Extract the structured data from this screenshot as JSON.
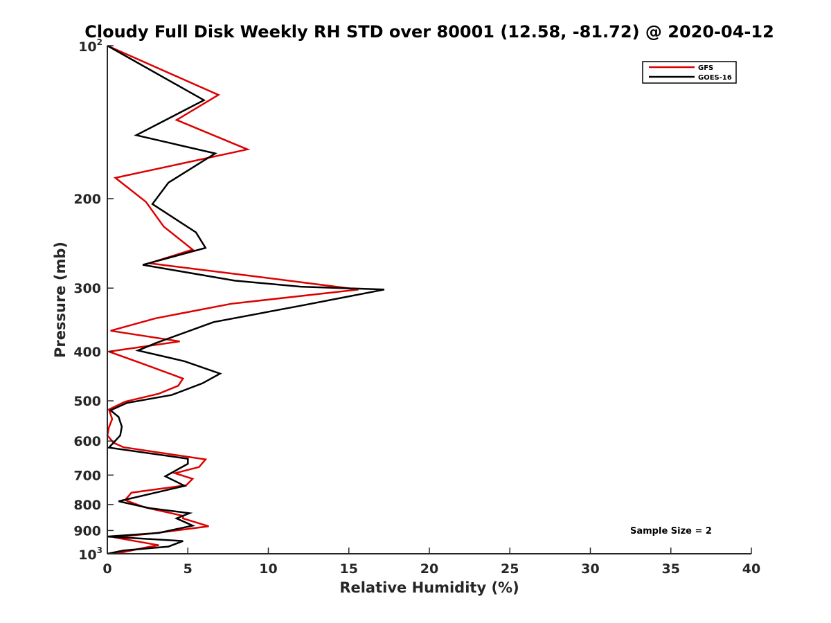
{
  "chart_data": {
    "type": "line",
    "title": "Cloudy Full Disk Weekly RH STD over 80001 (12.58, -81.72) @ 2020-04-12",
    "xlabel": "Relative Humidity (%)",
    "ylabel": "Pressure (mb)",
    "xlim": [
      0,
      40
    ],
    "ylim": [
      100,
      1000
    ],
    "y_scale": "log",
    "y_reversed": true,
    "x_ticks": [
      "0",
      "5",
      "10",
      "15",
      "20",
      "25",
      "30",
      "35",
      "40"
    ],
    "y_ticks": [
      {
        "value": 100,
        "base": "10",
        "exp": "2"
      },
      {
        "value": 200,
        "label": "200"
      },
      {
        "value": 300,
        "label": "300"
      },
      {
        "value": 400,
        "label": "400"
      },
      {
        "value": 500,
        "label": "500"
      },
      {
        "value": 600,
        "label": "600"
      },
      {
        "value": 700,
        "label": "700"
      },
      {
        "value": 800,
        "label": "800"
      },
      {
        "value": 900,
        "label": "900"
      },
      {
        "value": 1000,
        "base": "10",
        "exp": "3"
      }
    ],
    "grid": false,
    "legend_position": "top-right",
    "annotation": "Sample Size = 2",
    "series": [
      {
        "name": "GFS",
        "color": "#dd0000",
        "points": [
          [
            0.0,
            100
          ],
          [
            6.9,
            125
          ],
          [
            4.3,
            140
          ],
          [
            8.7,
            160
          ],
          [
            0.5,
            182
          ],
          [
            2.4,
            203
          ],
          [
            3.5,
            227
          ],
          [
            5.3,
            252
          ],
          [
            2.6,
            268
          ],
          [
            8.6,
            283
          ],
          [
            15.6,
            302
          ],
          [
            7.7,
            322
          ],
          [
            3.0,
            344
          ],
          [
            0.2,
            364
          ],
          [
            4.5,
            382
          ],
          [
            0.1,
            400
          ],
          [
            2.4,
            425
          ],
          [
            4.7,
            452
          ],
          [
            4.4,
            467
          ],
          [
            3.2,
            484
          ],
          [
            1.1,
            502
          ],
          [
            0.1,
            520
          ],
          [
            0.3,
            543
          ],
          [
            0.1,
            564
          ],
          [
            0.0,
            585
          ],
          [
            0.4,
            605
          ],
          [
            1.0,
            617
          ],
          [
            6.1,
            652
          ],
          [
            5.7,
            675
          ],
          [
            4.2,
            694
          ],
          [
            5.3,
            712
          ],
          [
            4.9,
            733
          ],
          [
            1.5,
            758
          ],
          [
            1.1,
            784
          ],
          [
            2.3,
            810
          ],
          [
            4.7,
            842
          ],
          [
            4.7,
            852
          ],
          [
            6.3,
            883
          ],
          [
            2.8,
            912
          ],
          [
            0.4,
            928
          ],
          [
            3.2,
            962
          ],
          [
            2.4,
            972
          ],
          [
            0.5,
            1000
          ]
        ]
      },
      {
        "name": "GOES-16",
        "color": "#000000",
        "points": [
          [
            0.0,
            100
          ],
          [
            6.0,
            128
          ],
          [
            1.8,
            150
          ],
          [
            6.7,
            163
          ],
          [
            3.8,
            186
          ],
          [
            2.8,
            205
          ],
          [
            5.5,
            233
          ],
          [
            6.1,
            250
          ],
          [
            2.2,
            270
          ],
          [
            7.9,
            290
          ],
          [
            12.0,
            298
          ],
          [
            17.2,
            302
          ],
          [
            12.0,
            325
          ],
          [
            6.6,
            350
          ],
          [
            3.0,
            385
          ],
          [
            1.9,
            398
          ],
          [
            4.8,
            418
          ],
          [
            7.0,
            442
          ],
          [
            5.9,
            462
          ],
          [
            4.0,
            487
          ],
          [
            1.2,
            505
          ],
          [
            0.2,
            522
          ],
          [
            0.7,
            538
          ],
          [
            0.9,
            562
          ],
          [
            0.8,
            585
          ],
          [
            0.1,
            618
          ],
          [
            5.0,
            650
          ],
          [
            5.0,
            665
          ],
          [
            3.6,
            704
          ],
          [
            4.8,
            735
          ],
          [
            0.7,
            788
          ],
          [
            2.6,
            813
          ],
          [
            5.1,
            832
          ],
          [
            4.3,
            852
          ],
          [
            5.3,
            880
          ],
          [
            3.2,
            910
          ],
          [
            0.0,
            925
          ],
          [
            4.7,
            944
          ],
          [
            3.8,
            968
          ],
          [
            1.0,
            985
          ],
          [
            0.0,
            1000
          ]
        ]
      }
    ]
  }
}
